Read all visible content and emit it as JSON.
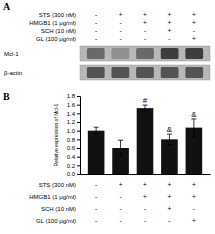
{
  "chart_data": [
    {
      "type": "blot",
      "title": "A",
      "rows": [
        "Mcl-1",
        "β-actin"
      ],
      "cells": [
        [
          0.52,
          0.35,
          0.52,
          0.72,
          0.72
        ],
        [
          0.62,
          0.62,
          0.62,
          0.62,
          0.62
        ]
      ],
      "color": "#b8b8b8",
      "treatment_labels": [
        "STS (300 nM)",
        "HMGB1 (1 μg/ml)",
        "SCH (10 nM)",
        "GL (100 μg/ml)"
      ],
      "treatment_signs": [
        [
          "-",
          "+",
          "+",
          "+",
          "+"
        ],
        [
          "-",
          "-",
          "+",
          "+",
          "+"
        ],
        [
          "-",
          "-",
          "-",
          "+",
          "-"
        ],
        [
          "-",
          "-",
          "-",
          "-",
          "+"
        ]
      ]
    },
    {
      "type": "bar",
      "title": "B",
      "categories": [
        null,
        null,
        null,
        null,
        null
      ],
      "values": [
        1.0,
        0.6,
        1.52,
        0.8,
        1.07
      ],
      "errors": [
        0.08,
        0.18,
        0.07,
        0.12,
        0.2
      ],
      "color": "#111111",
      "annotations": [
        null,
        null,
        "#",
        "&",
        "&"
      ],
      "ylabel": "Relative expression of Mcl-1",
      "ylim": [
        0.0,
        1.8
      ],
      "yticks": [
        {
          "value": 0.0,
          "label": "0.0"
        },
        0.2,
        0.4,
        0.6,
        0.8,
        {
          "value": 1.0,
          "label": "1.0"
        },
        1.2,
        1.4,
        1.6,
        1.8
      ],
      "treatment_labels": [
        "STS (300 nM)",
        "HMGB1 (1 μg/ml)",
        "SCH (10 nM)",
        "GL (100 μg/ml)"
      ],
      "treatment_signs": [
        [
          "-",
          "+",
          "+",
          "+",
          "+"
        ],
        [
          "-",
          "-",
          "+",
          "+",
          "+"
        ],
        [
          "-",
          "-",
          "-",
          "+",
          "-"
        ],
        [
          "-",
          "-",
          "-",
          "-",
          "+"
        ]
      ]
    }
  ]
}
